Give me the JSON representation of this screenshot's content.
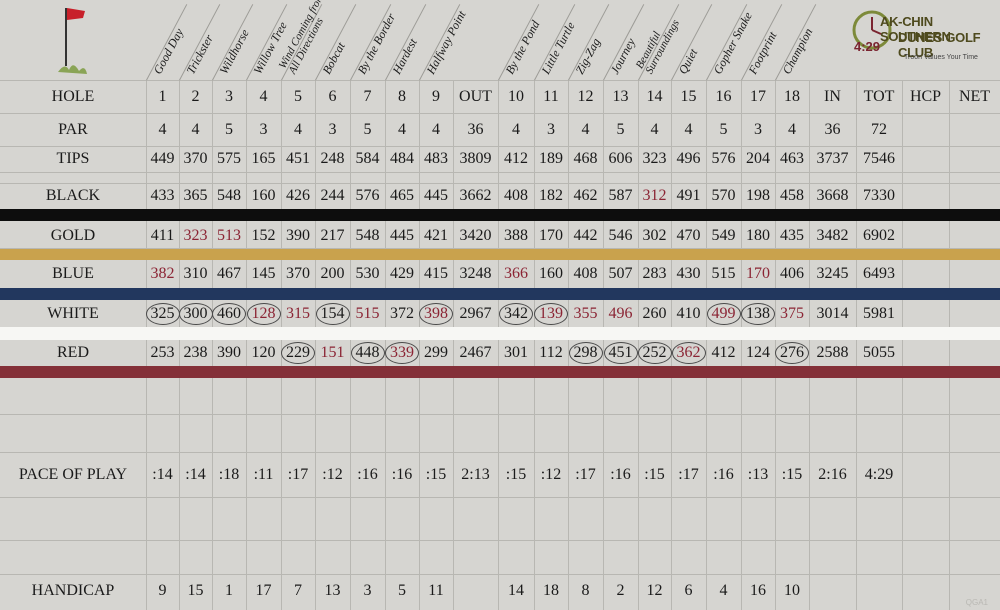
{
  "logo": {
    "line1": "AK-CHIN SOUTHERN",
    "line2": "DUNES GOLF CLUB",
    "time": "4:29",
    "tagline": "Troon Values Your Time"
  },
  "hole_names": [
    "Good Day",
    "Trickster",
    "Wildhorse",
    "Willow Tree",
    "Wind Coming from All Directions",
    "Bobcat",
    "By the Border",
    "Hardest",
    "Halfway Point",
    "By the Pond",
    "Little Turtle",
    "Zig-Zag",
    "Journey",
    "Beautiful Surroundings",
    "Quiet",
    "Gopher Snake",
    "Footprint",
    "Champion"
  ],
  "header_row": {
    "label": "HOLE",
    "holes_front": [
      "1",
      "2",
      "3",
      "4",
      "5",
      "6",
      "7",
      "8",
      "9"
    ],
    "out": "OUT",
    "holes_back": [
      "10",
      "11",
      "12",
      "13",
      "14",
      "15",
      "16",
      "17",
      "18"
    ],
    "in": "IN",
    "tot": "TOT",
    "hcp": "HCP",
    "net": "NET"
  },
  "par": {
    "label": "PAR",
    "front": [
      "4",
      "4",
      "5",
      "3",
      "4",
      "3",
      "5",
      "4",
      "4"
    ],
    "out": "36",
    "back": [
      "4",
      "3",
      "4",
      "5",
      "4",
      "4",
      "5",
      "3",
      "4"
    ],
    "in": "36",
    "tot": "72"
  },
  "tees": [
    {
      "label": "TIPS",
      "band": "",
      "front": [
        "449",
        "370",
        "575",
        "165",
        "451",
        "248",
        "584",
        "484",
        "483"
      ],
      "out": "3809",
      "back": [
        "412",
        "189",
        "468",
        "606",
        "323",
        "496",
        "576",
        "204",
        "463"
      ],
      "in": "3737",
      "tot": "7546",
      "red": [],
      "circled": []
    },
    {
      "label": "BLACK",
      "band": "#0d0d0d",
      "front": [
        "433",
        "365",
        "548",
        "160",
        "426",
        "244",
        "576",
        "465",
        "445"
      ],
      "out": "3662",
      "back": [
        "408",
        "182",
        "462",
        "587",
        "312",
        "491",
        "570",
        "198",
        "458"
      ],
      "in": "3668",
      "tot": "7330",
      "red": [
        13
      ],
      "circled": []
    },
    {
      "label": "GOLD",
      "band": "#c9a24d",
      "front": [
        "411",
        "323",
        "513",
        "152",
        "390",
        "217",
        "548",
        "445",
        "421"
      ],
      "out": "3420",
      "back": [
        "388",
        "170",
        "442",
        "546",
        "302",
        "470",
        "549",
        "180",
        "435"
      ],
      "in": "3482",
      "tot": "6902",
      "red": [
        1,
        2
      ],
      "circled": []
    },
    {
      "label": "BLUE",
      "band": "#22375e",
      "front": [
        "382",
        "310",
        "467",
        "145",
        "370",
        "200",
        "530",
        "429",
        "415"
      ],
      "out": "3248",
      "back": [
        "366",
        "160",
        "408",
        "507",
        "283",
        "430",
        "515",
        "170",
        "406"
      ],
      "in": "3245",
      "tot": "6493",
      "red": [
        0,
        9,
        16
      ],
      "circled": []
    },
    {
      "label": "WHITE",
      "band": "#f7f7f4",
      "front": [
        "325",
        "300",
        "460",
        "128",
        "315",
        "154",
        "515",
        "372",
        "398"
      ],
      "out": "2967",
      "back": [
        "342",
        "139",
        "355",
        "496",
        "260",
        "410",
        "499",
        "138",
        "375"
      ],
      "in": "3014",
      "tot": "5981",
      "red": [
        3,
        4,
        6,
        8,
        10,
        11,
        12,
        15,
        17
      ],
      "circled": [
        0,
        1,
        2,
        3,
        5,
        8,
        9,
        10,
        15,
        16
      ]
    },
    {
      "label": "RED",
      "band": "#843038",
      "front": [
        "253",
        "238",
        "390",
        "120",
        "229",
        "151",
        "448",
        "339",
        "299"
      ],
      "out": "2467",
      "back": [
        "301",
        "112",
        "298",
        "451",
        "252",
        "362",
        "412",
        "124",
        "276"
      ],
      "in": "2588",
      "tot": "5055",
      "red": [
        5,
        7,
        14
      ],
      "circled": [
        4,
        6,
        7,
        11,
        12,
        13,
        14,
        17
      ]
    }
  ],
  "pace": {
    "label": "PACE OF PLAY",
    "front": [
      ":14",
      ":14",
      ":18",
      ":11",
      ":17",
      ":12",
      ":16",
      ":16",
      ":15"
    ],
    "out": "2:13",
    "back": [
      ":15",
      ":12",
      ":17",
      ":16",
      ":15",
      ":17",
      ":16",
      ":13",
      ":15"
    ],
    "in": "2:16",
    "tot": "4:29"
  },
  "handicap": {
    "label": "HANDICAP",
    "front": [
      "9",
      "15",
      "1",
      "17",
      "7",
      "13",
      "3",
      "5",
      "11"
    ],
    "back": [
      "14",
      "18",
      "8",
      "2",
      "12",
      "6",
      "4",
      "16",
      "10"
    ]
  },
  "watermark": "QGA1",
  "colors": {
    "accent_red": "#8b2434",
    "paper": "#d6d5d1",
    "grid": "#b8b7b2"
  }
}
